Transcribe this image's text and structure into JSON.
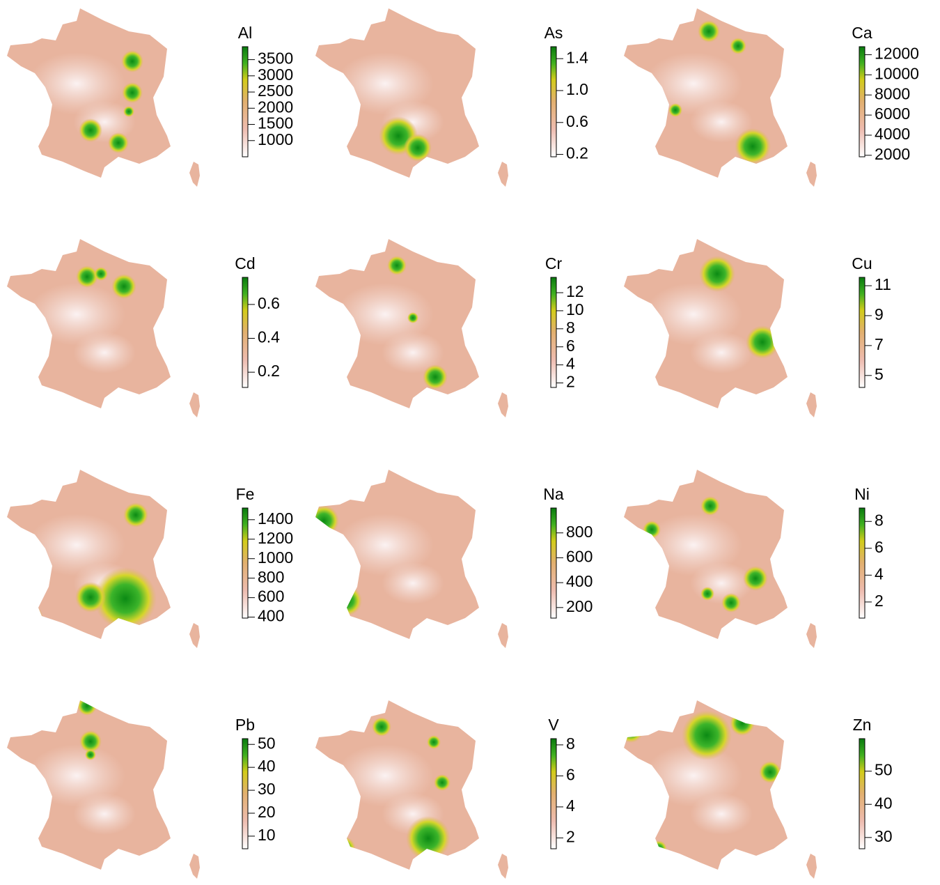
{
  "panels": [
    {
      "element": "Al",
      "range": [
        500,
        3900
      ],
      "ticks": [
        1000,
        1500,
        2000,
        2500,
        3000,
        3500
      ]
    },
    {
      "element": "As",
      "range": [
        0.17,
        1.55
      ],
      "ticks": [
        0.2,
        0.6,
        {
          "value": 1,
          "label": "1.0"
        },
        1.4
      ]
    },
    {
      "element": "Ca",
      "range": [
        1850,
        12800
      ],
      "ticks": [
        2000,
        4000,
        6000,
        8000,
        10000,
        12000
      ]
    },
    {
      "element": "Cd",
      "range": [
        0.11,
        0.76
      ],
      "ticks": [
        0.2,
        0.4,
        0.6
      ]
    },
    {
      "element": "Cr",
      "range": [
        1.5,
        13.7
      ],
      "ticks": [
        2,
        4,
        6,
        8,
        10,
        12
      ]
    },
    {
      "element": "Cu",
      "range": [
        4.2,
        11.56
      ],
      "ticks": [
        5,
        7,
        9,
        11
      ]
    },
    {
      "element": "Fe",
      "range": [
        390,
        1520
      ],
      "ticks": [
        400,
        600,
        800,
        1000,
        1200,
        1400
      ]
    },
    {
      "element": "Na",
      "range": [
        115,
        1000
      ],
      "ticks": [
        200,
        400,
        600,
        800
      ]
    },
    {
      "element": "Ni",
      "range": [
        0.8,
        9.0
      ],
      "ticks": [
        2,
        4,
        6,
        8
      ]
    },
    {
      "element": "Pb",
      "range": [
        4.5,
        52.5
      ],
      "ticks": [
        10,
        20,
        30,
        40,
        50
      ]
    },
    {
      "element": "V",
      "range": [
        1.3,
        8.4
      ],
      "ticks": [
        2,
        4,
        6,
        8
      ]
    },
    {
      "element": "Zn",
      "range": [
        26.6,
        59.8
      ],
      "ticks": [
        30,
        40,
        50
      ]
    }
  ]
}
